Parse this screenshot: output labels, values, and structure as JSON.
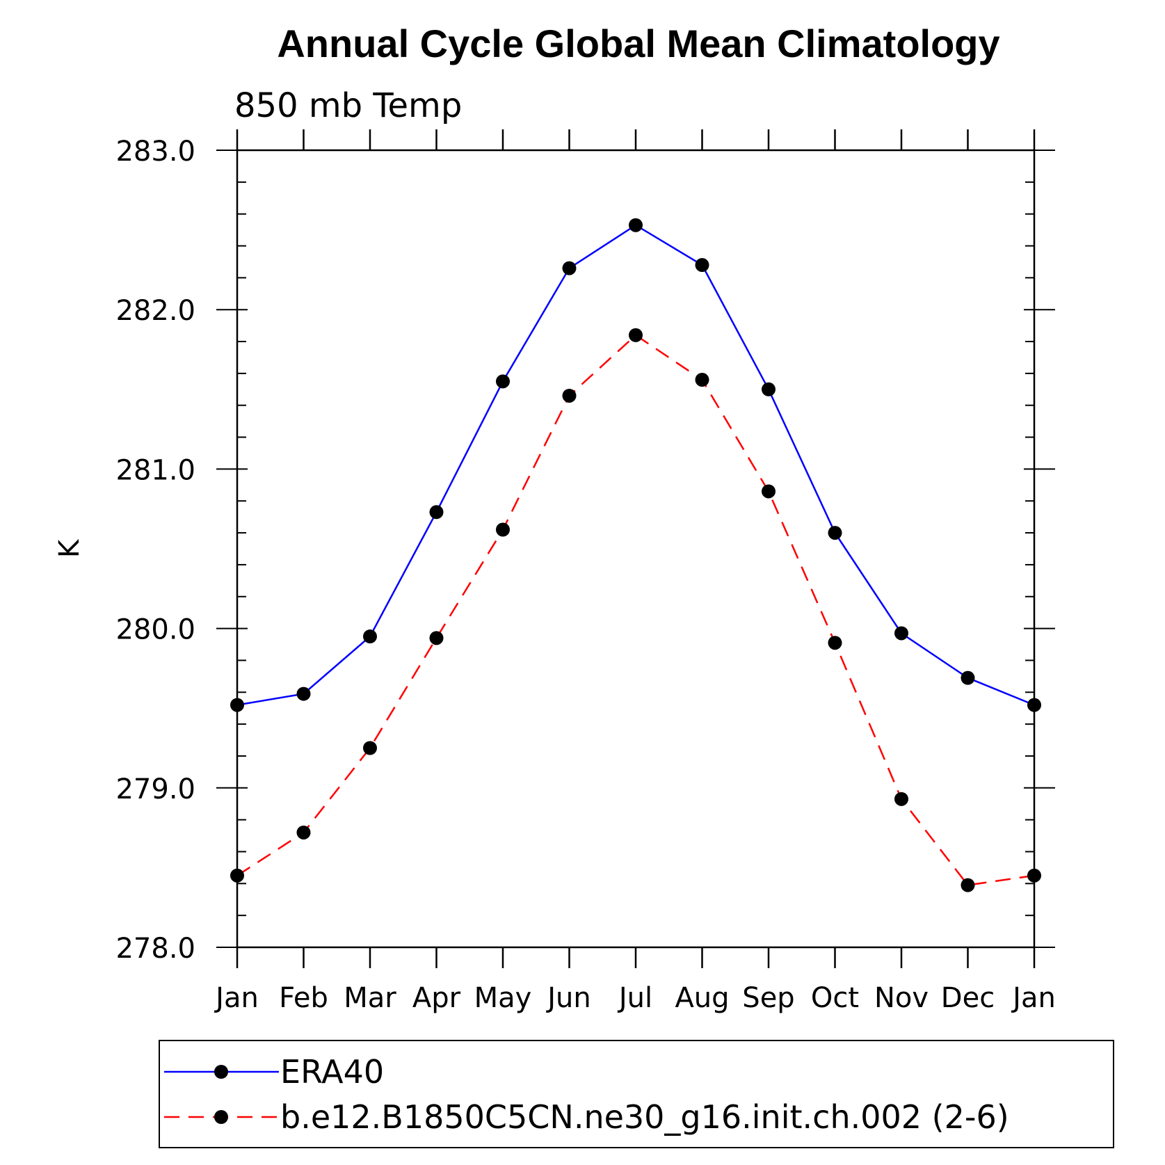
{
  "chart_data": {
    "type": "line",
    "title": "Annual Cycle Global Mean Climatology",
    "subtitle": "850 mb Temp",
    "xlabel": "",
    "ylabel": "K",
    "categories": [
      "Jan",
      "Feb",
      "Mar",
      "Apr",
      "May",
      "Jun",
      "Jul",
      "Aug",
      "Sep",
      "Oct",
      "Nov",
      "Dec",
      "Jan"
    ],
    "ylim": [
      278.0,
      283.0
    ],
    "yticks": [
      "278.0",
      "279.0",
      "280.0",
      "281.0",
      "282.0",
      "283.0"
    ],
    "grid": false,
    "legend_position": "bottom",
    "series": [
      {
        "name": "ERA40",
        "color": "#0000ff",
        "dash": "solid",
        "marker": "filled-circle",
        "values": [
          279.52,
          279.59,
          279.95,
          280.73,
          281.55,
          282.26,
          282.53,
          282.28,
          281.5,
          280.6,
          279.97,
          279.69,
          279.52
        ]
      },
      {
        "name": "b.e12.B1850C5CN.ne30_g16.init.ch.002 (2-6)",
        "color": "#ff0000",
        "dash": "dashed",
        "marker": "filled-circle",
        "values": [
          278.45,
          278.72,
          279.25,
          279.94,
          280.62,
          281.46,
          281.84,
          281.56,
          280.86,
          279.91,
          278.93,
          278.39,
          278.45
        ]
      }
    ]
  }
}
